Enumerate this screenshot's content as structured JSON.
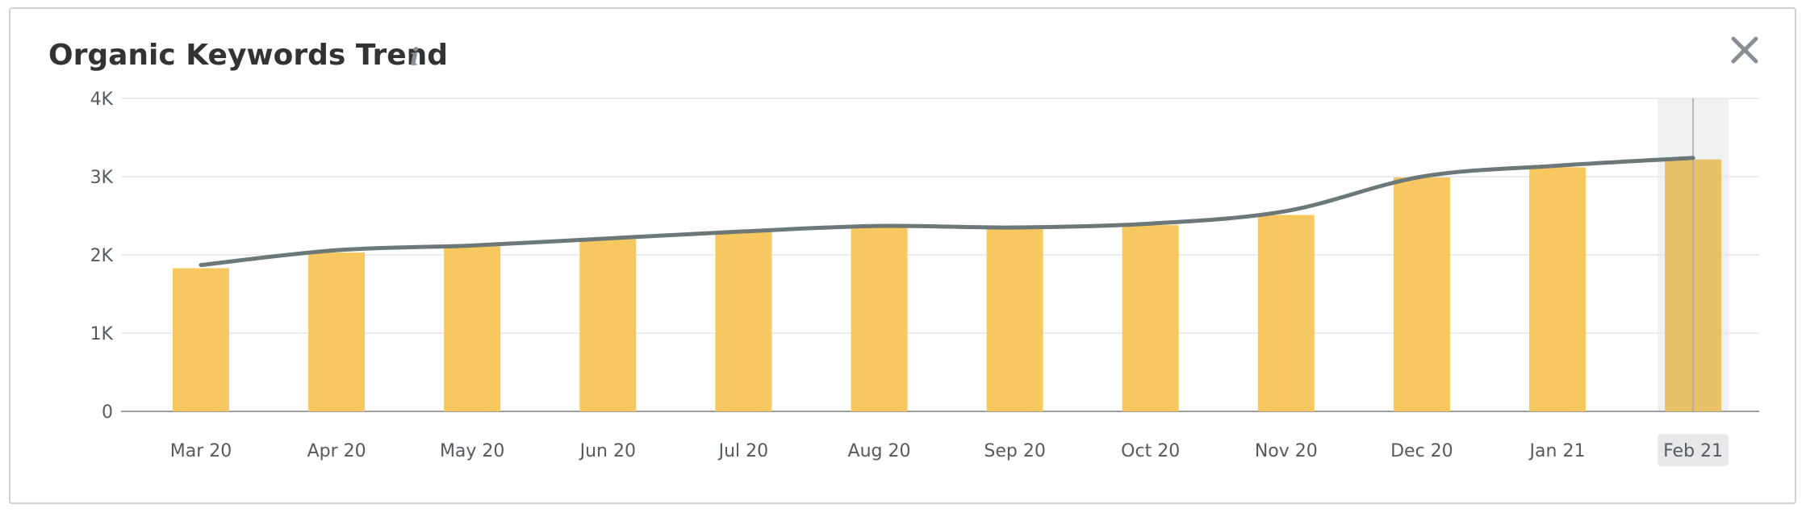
{
  "header": {
    "title": "Organic Keywords Trend",
    "info_icon": "info-icon",
    "close_icon": "close-icon"
  },
  "colors": {
    "bar": "#f6c85f",
    "bar_highlighted": "#e7c069",
    "line": "#6b7779",
    "grid": "#e3e5e8",
    "highlight_band": "#eef0f2",
    "highlight_label_bg": "#e6e8ea"
  },
  "chart_data": {
    "type": "bar",
    "title": "Organic Keywords Trend",
    "xlabel": "",
    "ylabel": "",
    "ylim": [
      0,
      4000
    ],
    "yticks": [
      0,
      1000,
      2000,
      3000,
      4000
    ],
    "ytick_labels": [
      "0",
      "1K",
      "2K",
      "3K",
      "4K"
    ],
    "grid": true,
    "legend": "none",
    "categories": [
      "Mar 20",
      "Apr 20",
      "May 20",
      "Jun 20",
      "Jul 20",
      "Aug 20",
      "Sep 20",
      "Oct 20",
      "Nov 20",
      "Dec 20",
      "Jan 21",
      "Feb 21"
    ],
    "series": [
      {
        "type": "bar",
        "values": [
          1830,
          2030,
          2110,
          2200,
          2290,
          2360,
          2330,
          2380,
          2510,
          2990,
          3120,
          3220
        ]
      },
      {
        "type": "line",
        "values": [
          1870,
          2060,
          2120,
          2210,
          2300,
          2370,
          2350,
          2400,
          2560,
          3000,
          3140,
          3240
        ]
      }
    ],
    "highlighted_category": "Feb 21"
  }
}
